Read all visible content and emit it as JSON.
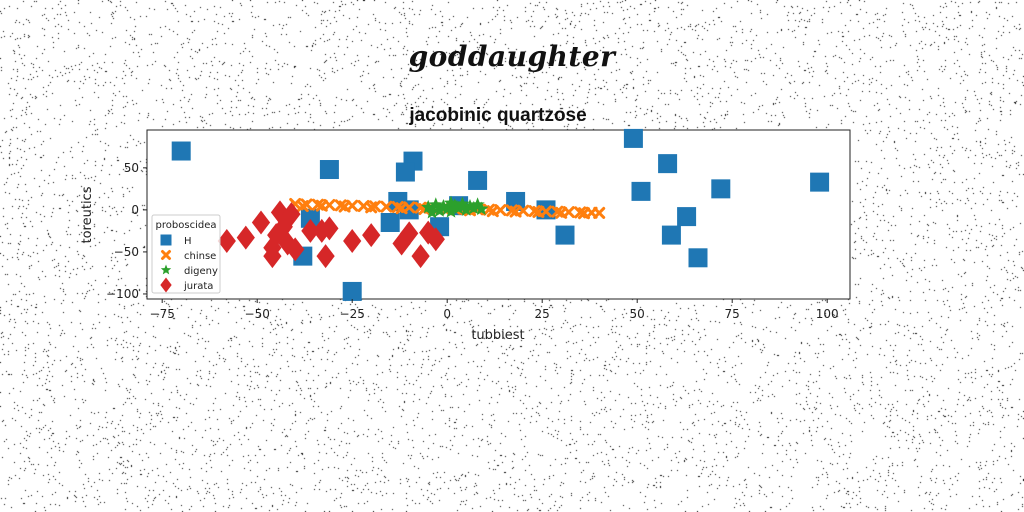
{
  "page": {
    "suptitle": "goddaughter"
  },
  "chart_data": {
    "type": "scatter",
    "title": "jacobinic quartzose",
    "xlabel": "tubbiest",
    "ylabel": "toreutics",
    "xlim": [
      -79,
      106
    ],
    "ylim": [
      -106,
      95
    ],
    "xticks": [
      -75,
      -50,
      -25,
      0,
      25,
      50,
      75,
      100
    ],
    "yticks": [
      50,
      0,
      -50,
      -100
    ],
    "grid": false,
    "legend": {
      "title": "proboscidea",
      "placement": "center-left"
    },
    "series": [
      {
        "name": "H",
        "marker": "square",
        "color": "#1f77b4",
        "points": [
          [
            -70,
            70
          ],
          [
            -31,
            48
          ],
          [
            -9,
            58
          ],
          [
            -11,
            45
          ],
          [
            -13,
            10
          ],
          [
            -10,
            0
          ],
          [
            -15,
            -15
          ],
          [
            -36,
            -10
          ],
          [
            -38,
            -55
          ],
          [
            -25,
            -97
          ],
          [
            -2,
            -20
          ],
          [
            3,
            5
          ],
          [
            8,
            35
          ],
          [
            18,
            10
          ],
          [
            26,
            0
          ],
          [
            31,
            -30
          ],
          [
            49,
            85
          ],
          [
            51,
            22
          ],
          [
            58,
            55
          ],
          [
            59,
            -30
          ],
          [
            63,
            -8
          ],
          [
            66,
            -57
          ],
          [
            72,
            25
          ],
          [
            98,
            33
          ]
        ]
      },
      {
        "name": "chinse",
        "marker": "x",
        "color": "#ff7f0e",
        "points": [
          [
            -40,
            7
          ],
          [
            -37,
            6.5
          ],
          [
            -34,
            6.2
          ],
          [
            -31,
            5.8
          ],
          [
            -28,
            5.4
          ],
          [
            -25,
            5
          ],
          [
            -22,
            4.6
          ],
          [
            -19,
            4.2
          ],
          [
            -16,
            3.8
          ],
          [
            -13,
            3.4
          ],
          [
            -10,
            3
          ],
          [
            -7,
            2.6
          ],
          [
            -4,
            2.2
          ],
          [
            -1,
            1.8
          ],
          [
            2,
            1.4
          ],
          [
            5,
            1
          ],
          [
            8,
            0.6
          ],
          [
            11,
            0.2
          ],
          [
            14,
            -0.2
          ],
          [
            17,
            -0.6
          ],
          [
            20,
            -1
          ],
          [
            23,
            -1.4
          ],
          [
            26,
            -1.8
          ],
          [
            29,
            -2.2
          ],
          [
            32,
            -2.6
          ],
          [
            35,
            -3
          ],
          [
            38,
            -3.4
          ],
          [
            40,
            -3.6
          ],
          [
            -38,
            4.5
          ],
          [
            -33,
            5
          ],
          [
            -27,
            4
          ],
          [
            -20,
            3
          ],
          [
            -12,
            2
          ],
          [
            -6,
            1
          ],
          [
            0,
            0.5
          ],
          [
            6,
            -0.5
          ],
          [
            12,
            -1.5
          ],
          [
            18,
            -2
          ],
          [
            24,
            -2.5
          ],
          [
            30,
            -3.5
          ],
          [
            36,
            -4
          ]
        ]
      },
      {
        "name": "digeny",
        "marker": "star",
        "color": "#2ca02c",
        "points": [
          [
            -5,
            3
          ],
          [
            -3,
            6
          ],
          [
            -2,
            -1
          ],
          [
            -1,
            4
          ],
          [
            0,
            1
          ],
          [
            1,
            -2
          ],
          [
            2,
            5
          ],
          [
            3,
            2
          ],
          [
            4,
            7
          ],
          [
            5,
            0
          ],
          [
            6,
            4
          ],
          [
            7,
            2
          ],
          [
            8,
            6
          ],
          [
            9,
            1
          ],
          [
            -4,
            -3
          ],
          [
            1,
            8
          ]
        ]
      },
      {
        "name": "jurata",
        "marker": "thin_diamond",
        "color": "#d62728",
        "points": [
          [
            -58,
            -37
          ],
          [
            -53,
            -33
          ],
          [
            -49,
            -15
          ],
          [
            -46,
            -55
          ],
          [
            -46,
            -45
          ],
          [
            -45,
            -30
          ],
          [
            -44,
            -3
          ],
          [
            -43,
            -20
          ],
          [
            -42,
            -40
          ],
          [
            -41,
            -5
          ],
          [
            -40,
            -47
          ],
          [
            -36,
            -25
          ],
          [
            -33,
            -25
          ],
          [
            -32,
            -55
          ],
          [
            -31,
            -22
          ],
          [
            -25,
            -37
          ],
          [
            -20,
            -30
          ],
          [
            -12,
            -40
          ],
          [
            -10,
            -28
          ],
          [
            -7,
            -55
          ],
          [
            -5,
            -27
          ],
          [
            -3,
            -35
          ]
        ]
      }
    ]
  }
}
